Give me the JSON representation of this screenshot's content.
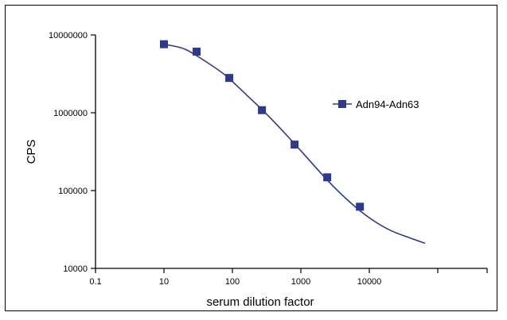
{
  "chart_data": {
    "type": "scatter",
    "title": "",
    "xlabel": "serum dilution factor",
    "ylabel": "CPS",
    "x_scale": "log",
    "y_scale": "log",
    "xlim": [
      0.1,
      1000000
    ],
    "ylim": [
      10000,
      10000000
    ],
    "x_ticks": [
      0.1,
      10,
      100,
      1000,
      10000
    ],
    "x_tick_labels": [
      "0.1",
      "10",
      "100",
      "1000",
      "10000"
    ],
    "y_ticks": [
      10000,
      100000,
      1000000,
      10000000
    ],
    "y_tick_labels": [
      "10000",
      "100000",
      "1000000",
      "10000000"
    ],
    "grid": false,
    "legend_position": "right",
    "series": [
      {
        "name": "Adn94-Adn63",
        "color": "#2b3990",
        "marker": "square",
        "x": [
          10,
          30,
          90,
          270,
          810,
          2430,
          7290
        ],
        "y": [
          7600000,
          6100000,
          2800000,
          1080000,
          390000,
          148000,
          62000
        ]
      }
    ],
    "fit_curve": {
      "color": "#2b3990",
      "x": [
        10,
        20,
        40,
        80,
        160,
        320,
        640,
        1280,
        2560,
        5120,
        10240,
        20000,
        40000,
        65000
      ],
      "y": [
        7600000,
        6600000,
        4600000,
        3000000,
        1700000,
        950000,
        500000,
        255000,
        130000,
        72000,
        44000,
        31000,
        24500,
        21000
      ]
    }
  }
}
